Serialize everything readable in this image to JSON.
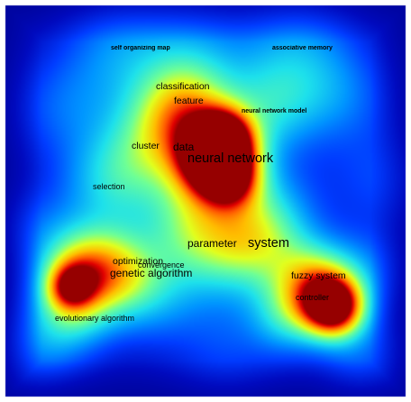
{
  "map": {
    "background_color": "#0a1aa8",
    "colormap": [
      "#00008f",
      "#0010c8",
      "#0050ff",
      "#00a0ff",
      "#20e8e8",
      "#70ff90",
      "#e0ff20",
      "#ffc000",
      "#ff6000",
      "#e00000",
      "#a00000"
    ],
    "terms": [
      {
        "id": "self-organizing-map",
        "label": "self organizing map",
        "weight": 0.35
      },
      {
        "id": "associative-memory",
        "label": "associative memory",
        "weight": 0.3
      },
      {
        "id": "classification",
        "label": "classification",
        "weight": 0.5
      },
      {
        "id": "feature",
        "label": "feature",
        "weight": 0.5
      },
      {
        "id": "neural-network-model",
        "label": "neural network model",
        "weight": 0.45
      },
      {
        "id": "cluster",
        "label": "cluster",
        "weight": 0.45
      },
      {
        "id": "data",
        "label": "data",
        "weight": 0.8
      },
      {
        "id": "neural-network",
        "label": "neural network",
        "weight": 1.0
      },
      {
        "id": "selection",
        "label": "selection",
        "weight": 0.4
      },
      {
        "id": "parameter",
        "label": "parameter",
        "weight": 0.55
      },
      {
        "id": "system",
        "label": "system",
        "weight": 0.75
      },
      {
        "id": "optimization",
        "label": "optimization",
        "weight": 0.6
      },
      {
        "id": "convergence",
        "label": "convergence",
        "weight": 0.45
      },
      {
        "id": "genetic-algorithm",
        "label": "genetic algorithm",
        "weight": 0.7
      },
      {
        "id": "fuzzy-system",
        "label": "fuzzy system",
        "weight": 0.65
      },
      {
        "id": "controller",
        "label": "controller",
        "weight": 0.85
      },
      {
        "id": "evolutionary-algorithm",
        "label": "evolutionary algorithm",
        "weight": 0.55
      }
    ]
  }
}
